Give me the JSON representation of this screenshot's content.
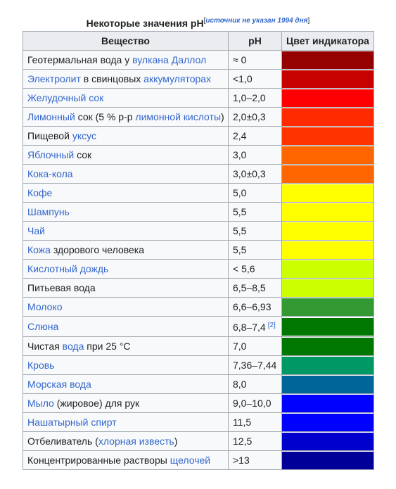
{
  "caption": {
    "text": "Некоторые значения pH",
    "note_open": "[",
    "note": "источник не указан 1994 дня",
    "note_close": "]"
  },
  "headers": [
    "Вещество",
    "pH",
    "Цвет индикатора"
  ],
  "rows": [
    {
      "parts": [
        {
          "t": "Геотермальная вода у ",
          "link": false
        },
        {
          "t": "вулкана Даллол",
          "link": true
        }
      ],
      "ph": "≈ 0",
      "color": "#950000"
    },
    {
      "parts": [
        {
          "t": "Электролит",
          "link": true
        },
        {
          "t": " в свинцовых ",
          "link": false
        },
        {
          "t": "аккумуляторах",
          "link": true
        }
      ],
      "ph": "<1,0",
      "color": "#c70000"
    },
    {
      "parts": [
        {
          "t": "Желудочный сок",
          "link": true
        }
      ],
      "ph": "1,0–2,0",
      "color": "#ff0000"
    },
    {
      "parts": [
        {
          "t": "Лимонный",
          "link": true
        },
        {
          "t": " сок (5 % р-р ",
          "link": false
        },
        {
          "t": "лимонной кислоты",
          "link": true
        },
        {
          "t": ")",
          "link": false
        }
      ],
      "ph": "2,0±0,3",
      "color": "#ff2a00"
    },
    {
      "parts": [
        {
          "t": "Пищевой ",
          "link": false
        },
        {
          "t": "уксус",
          "link": true
        }
      ],
      "ph": "2,4",
      "color": "#ff3300"
    },
    {
      "parts": [
        {
          "t": "Яблочный",
          "link": true
        },
        {
          "t": " сок",
          "link": false
        }
      ],
      "ph": "3,0",
      "color": "#ff6600"
    },
    {
      "parts": [
        {
          "t": "Кока-кола",
          "link": true
        }
      ],
      "ph": "3,0±0,3",
      "color": "#ff6600"
    },
    {
      "parts": [
        {
          "t": "Кофе",
          "link": true
        }
      ],
      "ph": "5,0",
      "color": "#ffff00"
    },
    {
      "parts": [
        {
          "t": "Шампунь",
          "link": true
        }
      ],
      "ph": "5,5",
      "color": "#ffff00"
    },
    {
      "parts": [
        {
          "t": "Чай",
          "link": true
        }
      ],
      "ph": "5,5",
      "color": "#ffff00"
    },
    {
      "parts": [
        {
          "t": "Кожа",
          "link": true
        },
        {
          "t": " здорового человека",
          "link": false
        }
      ],
      "ph": "5,5",
      "color": "#ffff00"
    },
    {
      "parts": [
        {
          "t": "Кислотный дождь",
          "link": true
        }
      ],
      "ph": "< 5,6",
      "color": "#ccff00"
    },
    {
      "parts": [
        {
          "t": "Питьевая вода",
          "link": false
        }
      ],
      "ph": "6,5–8,5",
      "color": "#ccff00"
    },
    {
      "parts": [
        {
          "t": "Молоко",
          "link": true
        }
      ],
      "ph": "6,6–6,93",
      "color": "#339933"
    },
    {
      "parts": [
        {
          "t": "Слюна",
          "link": true
        }
      ],
      "ph": "6,8–7,4",
      "ref": "[2]",
      "color": "#007700"
    },
    {
      "parts": [
        {
          "t": "Чистая ",
          "link": false
        },
        {
          "t": "вода",
          "link": true
        },
        {
          "t": " при 25 °C",
          "link": false
        }
      ],
      "ph": "7,0",
      "color": "#007700"
    },
    {
      "parts": [
        {
          "t": "Кровь",
          "link": true
        }
      ],
      "ph": "7,36–7,44",
      "color": "#009966"
    },
    {
      "parts": [
        {
          "t": "Морская вода",
          "link": true
        }
      ],
      "ph": "8,0",
      "color": "#006699"
    },
    {
      "parts": [
        {
          "t": "Мыло",
          "link": true
        },
        {
          "t": " (жировое) для рук",
          "link": false
        }
      ],
      "ph": "9,0–10,0",
      "color": "#0000ff"
    },
    {
      "parts": [
        {
          "t": "Нашатырный спирт",
          "link": true
        }
      ],
      "ph": "11,5",
      "color": "#0000ff"
    },
    {
      "parts": [
        {
          "t": "Отбеливатель (",
          "link": false
        },
        {
          "t": "хлорная известь",
          "link": true
        },
        {
          "t": ")",
          "link": false
        }
      ],
      "ph": "12,5",
      "color": "#0000cc"
    },
    {
      "parts": [
        {
          "t": "Концентрированные растворы ",
          "link": false
        },
        {
          "t": "щелочей",
          "link": true
        }
      ],
      "ph": ">13",
      "color": "#000099"
    }
  ]
}
